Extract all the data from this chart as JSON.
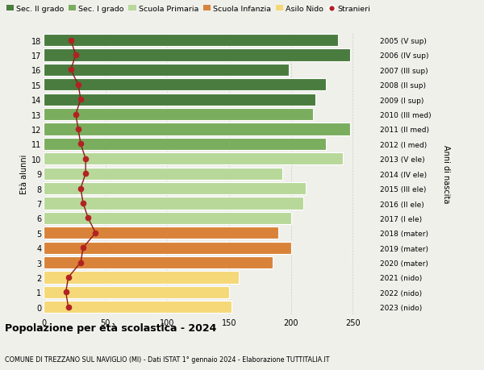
{
  "ages": [
    18,
    17,
    16,
    15,
    14,
    13,
    12,
    11,
    10,
    9,
    8,
    7,
    6,
    5,
    4,
    3,
    2,
    1,
    0
  ],
  "right_labels": [
    "2005 (V sup)",
    "2006 (IV sup)",
    "2007 (III sup)",
    "2008 (II sup)",
    "2009 (I sup)",
    "2010 (III med)",
    "2011 (II med)",
    "2012 (I med)",
    "2013 (V ele)",
    "2014 (IV ele)",
    "2015 (III ele)",
    "2016 (II ele)",
    "2017 (I ele)",
    "2018 (mater)",
    "2019 (mater)",
    "2020 (mater)",
    "2021 (nido)",
    "2022 (nido)",
    "2023 (nido)"
  ],
  "bar_values": [
    238,
    248,
    198,
    228,
    220,
    218,
    248,
    228,
    242,
    193,
    212,
    210,
    200,
    190,
    200,
    185,
    158,
    150,
    152
  ],
  "stranieri_values": [
    22,
    26,
    22,
    28,
    30,
    26,
    28,
    30,
    34,
    34,
    30,
    32,
    36,
    42,
    32,
    30,
    20,
    18,
    20
  ],
  "bar_colors": [
    "#4a7c3f",
    "#4a7c3f",
    "#4a7c3f",
    "#4a7c3f",
    "#4a7c3f",
    "#7aad5e",
    "#7aad5e",
    "#7aad5e",
    "#b8d89a",
    "#b8d89a",
    "#b8d89a",
    "#b8d89a",
    "#b8d89a",
    "#d9833a",
    "#d9833a",
    "#d9833a",
    "#f5d878",
    "#f5d878",
    "#f5d878"
  ],
  "legend_labels": [
    "Sec. II grado",
    "Sec. I grado",
    "Scuola Primaria",
    "Scuola Infanzia",
    "Asilo Nido",
    "Stranieri"
  ],
  "legend_colors": [
    "#4a7c3f",
    "#7aad5e",
    "#b8d89a",
    "#d9833a",
    "#f5d878",
    "#b22222"
  ],
  "title": "Popolazione per età scolastica - 2024",
  "subtitle": "COMUNE DI TREZZANO SUL NAVIGLIO (MI) - Dati ISTAT 1° gennaio 2024 - Elaborazione TUTTITALIA.IT",
  "ylabel_left": "Età alunni",
  "ylabel_right": "Anni di nascita",
  "xlim": [
    0,
    270
  ],
  "xticks": [
    0,
    50,
    100,
    150,
    200,
    250
  ],
  "bg_color": "#f0f0eb",
  "stranieri_color": "#b22222",
  "stranieri_line_color": "#8b1a1a"
}
